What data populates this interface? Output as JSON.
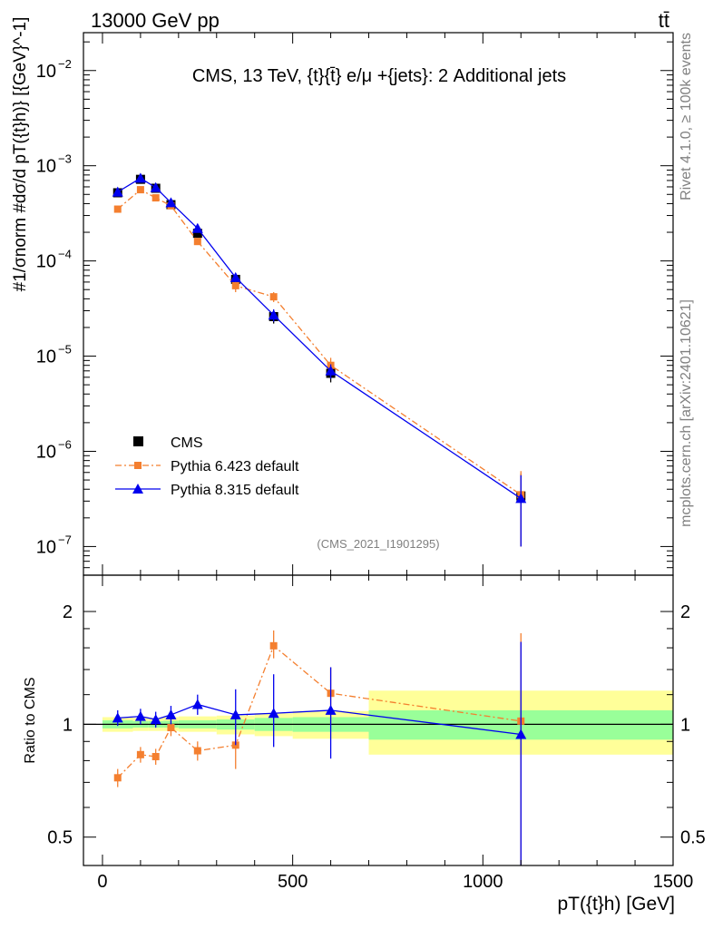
{
  "header": {
    "left": "13000 GeV pp",
    "right": "tt̄"
  },
  "side_labels": {
    "rivet": "Rivet 4.1.0, ≥ 100k events",
    "mcplots": "mcplots.cern.ch [arXiv:2401.10621]"
  },
  "chart_data": [
    {
      "type": "line",
      "panel": "main",
      "title": "CMS, 13 TeV, {t}{t̄} e/μ +{jets}: 2 Additional jets",
      "watermark": "(CMS_2021_I1901295)",
      "ylabel": "#1/σnorm #dσ/d pT({t}h)} [{GeV}^-1]",
      "yscale": "log",
      "ylim": [
        5e-08,
        0.025
      ],
      "xlim": [
        -50,
        1500
      ],
      "y_ticks": [
        {
          "value": 1e-07,
          "base": "10",
          "exp": "−7"
        },
        {
          "value": 1e-06,
          "base": "10",
          "exp": "−6"
        },
        {
          "value": 1e-05,
          "base": "10",
          "exp": "−5"
        },
        {
          "value": 0.0001,
          "base": "10",
          "exp": "−4"
        },
        {
          "value": 0.001,
          "base": "10",
          "exp": "−3"
        },
        {
          "value": 0.01,
          "base": "10",
          "exp": "−2"
        }
      ],
      "legend": {
        "placement": "bottom-left",
        "entries": [
          "CMS",
          "Pythia 6.423 default",
          "Pythia 8.315 default"
        ]
      },
      "series": [
        {
          "name": "CMS",
          "color": "#000000",
          "marker": "square",
          "x": [
            40,
            100,
            140,
            180,
            250,
            350,
            450,
            600,
            1100
          ],
          "y": [
            0.00052,
            0.00072,
            0.00058,
            0.00039,
            0.000195,
            6.4e-05,
            2.6e-05,
            6.6e-06,
            3.4e-07
          ],
          "err_lo": [
            0.0005,
            0.00069,
            0.000555,
            0.000372,
            0.000183,
            5.9e-05,
            2.2e-05,
            5.3e-06,
            1e-07
          ],
          "err_hi": [
            0.00054,
            0.00075,
            0.000605,
            0.000408,
            0.000207,
            6.9e-05,
            3e-05,
            7.9e-06,
            5.8e-07
          ]
        },
        {
          "name": "Pythia 6.423 default",
          "color": "#f47f2f",
          "marker": "square-small",
          "dash": "dashdot",
          "x": [
            40,
            100,
            140,
            180,
            250,
            350,
            450,
            600,
            1100
          ],
          "y": [
            0.00035,
            0.00056,
            0.00046,
            0.00038,
            0.00016,
            5.5e-05,
            4.2e-05,
            8e-06,
            3.5e-07
          ],
          "err_lo": [
            0.000335,
            0.00054,
            0.00044,
            0.000362,
            0.00015,
            4.7e-05,
            3.7e-05,
            6.6e-06,
            1e-07
          ],
          "err_hi": [
            0.000365,
            0.00058,
            0.00048,
            0.000398,
            0.00017,
            6.3e-05,
            4.7e-05,
            9.6e-06,
            6.2e-07
          ]
        },
        {
          "name": "Pythia 8.315 default",
          "color": "#0000ee",
          "marker": "triangle",
          "x": [
            40,
            100,
            140,
            180,
            250,
            350,
            450,
            600,
            1100
          ],
          "y": [
            0.00053,
            0.00074,
            0.00059,
            0.00041,
            0.00022,
            6.7e-05,
            2.7e-05,
            7e-06,
            3.2e-07
          ],
          "err_lo": [
            0.00051,
            0.00071,
            0.000565,
            0.000392,
            0.000208,
            6.2e-05,
            2.3e-05,
            5.8e-06,
            1e-07
          ],
          "err_hi": [
            0.00055,
            0.00077,
            0.000615,
            0.000428,
            0.000232,
            7.2e-05,
            3.1e-05,
            8.2e-06,
            5.6e-07
          ]
        }
      ]
    },
    {
      "type": "line",
      "panel": "ratio",
      "ylabel": "Ratio to CMS",
      "xlabel": "pT({t}h) [GeV]",
      "yscale": "log",
      "ylim": [
        0.42,
        2.5
      ],
      "xlim": [
        -50,
        1500
      ],
      "y_ticks": [
        {
          "value": 0.5,
          "label": "0.5"
        },
        {
          "value": 1,
          "label": "1"
        },
        {
          "value": 2,
          "label": "2"
        }
      ],
      "x_ticks": [
        {
          "value": 0,
          "label": "0"
        },
        {
          "value": 500,
          "label": "500"
        },
        {
          "value": 1000,
          "label": "1000"
        },
        {
          "value": 1500,
          "label": "1500"
        }
      ],
      "bands": [
        {
          "x0": 0,
          "x1": 80,
          "yellow": [
            0.955,
            1.045
          ],
          "green": [
            0.975,
            1.025
          ]
        },
        {
          "x0": 80,
          "x1": 120,
          "yellow": [
            0.96,
            1.04
          ],
          "green": [
            0.98,
            1.02
          ]
        },
        {
          "x0": 120,
          "x1": 160,
          "yellow": [
            0.96,
            1.04
          ],
          "green": [
            0.98,
            1.02
          ]
        },
        {
          "x0": 160,
          "x1": 200,
          "yellow": [
            0.96,
            1.045
          ],
          "green": [
            0.98,
            1.022
          ]
        },
        {
          "x0": 200,
          "x1": 300,
          "yellow": [
            0.955,
            1.05
          ],
          "green": [
            0.975,
            1.025
          ]
        },
        {
          "x0": 300,
          "x1": 400,
          "yellow": [
            0.94,
            1.055
          ],
          "green": [
            0.968,
            1.03
          ]
        },
        {
          "x0": 400,
          "x1": 500,
          "yellow": [
            0.93,
            1.07
          ],
          "green": [
            0.96,
            1.04
          ]
        },
        {
          "x0": 500,
          "x1": 700,
          "yellow": [
            0.915,
            1.085
          ],
          "green": [
            0.955,
            1.045
          ]
        },
        {
          "x0": 700,
          "x1": 1500,
          "yellow": [
            0.83,
            1.23
          ],
          "green": [
            0.91,
            1.09
          ]
        }
      ],
      "series": [
        {
          "name": "Pythia 6.423 default",
          "color": "#f47f2f",
          "x": [
            40,
            100,
            140,
            180,
            250,
            350,
            450,
            600,
            1100
          ],
          "y": [
            0.72,
            0.83,
            0.82,
            0.98,
            0.85,
            0.88,
            1.62,
            1.21,
            1.02
          ],
          "err_lo": [
            0.68,
            0.79,
            0.78,
            0.93,
            0.8,
            0.76,
            1.5,
            1.0,
            0.0
          ],
          "err_hi": [
            0.76,
            0.87,
            0.86,
            1.03,
            0.9,
            1.0,
            1.78,
            1.42,
            1.75
          ]
        },
        {
          "name": "Pythia 8.315 default",
          "color": "#0000ee",
          "x": [
            40,
            100,
            140,
            180,
            250,
            350,
            450,
            600,
            1100
          ],
          "y": [
            1.04,
            1.05,
            1.03,
            1.06,
            1.13,
            1.06,
            1.07,
            1.09,
            0.94
          ],
          "err_lo": [
            0.99,
            1.0,
            0.98,
            1.0,
            1.06,
            0.88,
            0.87,
            0.81,
            0.0
          ],
          "err_hi": [
            1.09,
            1.1,
            1.08,
            1.12,
            1.2,
            1.24,
            1.36,
            1.42,
            1.66
          ]
        }
      ]
    }
  ]
}
